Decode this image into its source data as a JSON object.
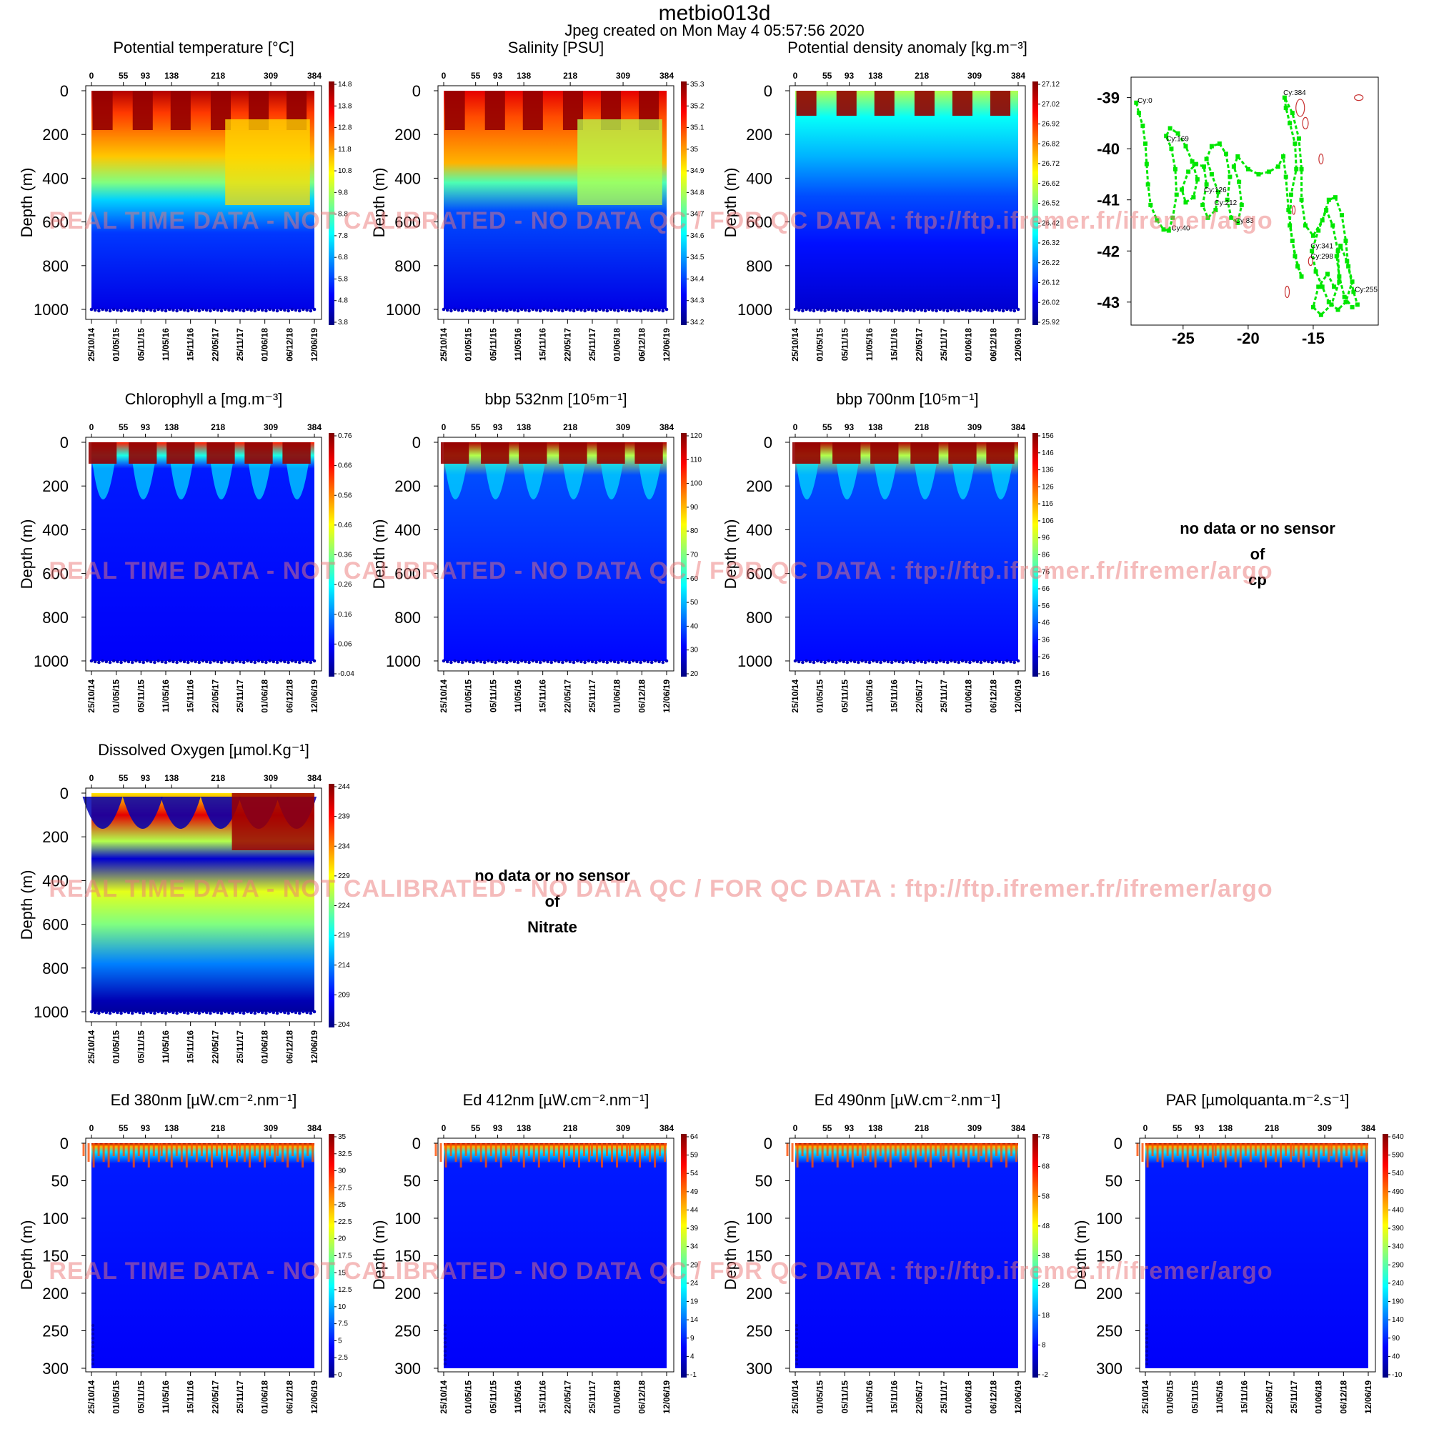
{
  "header": {
    "title": "metbio013d",
    "subtitle": "Jpeg created on  Mon May  4 05:57:56 2020"
  },
  "watermark": "REAL TIME DATA - NOT CALIBRATED - NO DATA QC   /  FOR QC DATA : ftp://ftp.ifremer.fr/ifremer/argo",
  "common": {
    "ylabel": "Depth (m)",
    "cycle_ticks": [
      "0",
      "55",
      "93",
      "138",
      "218",
      "309",
      "384"
    ],
    "date_ticks": [
      "25/10/14",
      "01/05/15",
      "05/11/15",
      "11/05/16",
      "15/11/16",
      "22/05/17",
      "25/11/17",
      "01/06/18",
      "06/12/18",
      "12/06/19"
    ],
    "depth_ticks_deep": [
      "0",
      "200",
      "400",
      "600",
      "800",
      "1000"
    ],
    "depth_ticks_shallow": [
      "0",
      "50",
      "100",
      "150",
      "200",
      "250",
      "300"
    ]
  },
  "no_data": {
    "cp": [
      "no data or no sensor",
      "of",
      "cp"
    ],
    "nitrate": [
      "no data or no sensor",
      "of",
      "Nitrate"
    ]
  },
  "colors": {
    "watermark": "#eb7878",
    "track": "#00e600",
    "track_label": "#000000",
    "contour": "#c83232"
  },
  "chart_data": [
    {
      "type": "heatmap",
      "id": "temp",
      "title": "Potential temperature [°C]",
      "ylim": [
        0,
        1000
      ],
      "colorbar_ticks": [
        "14.8",
        "13.8",
        "12.8",
        "11.8",
        "10.8",
        "9.8",
        "8.8",
        "7.8",
        "6.8",
        "5.8",
        "4.8",
        "3.8"
      ]
    },
    {
      "type": "heatmap",
      "id": "sal",
      "title": "Salinity [PSU]",
      "ylim": [
        0,
        1000
      ],
      "colorbar_ticks": [
        "35.3",
        "35.2",
        "35.1",
        "35",
        "34.9",
        "34.8",
        "34.7",
        "34.6",
        "34.5",
        "34.4",
        "34.3",
        "34.2"
      ]
    },
    {
      "type": "heatmap",
      "id": "dens",
      "title": "Potential density anomaly [kg.m⁻³]",
      "ylim": [
        0,
        1000
      ],
      "colorbar_ticks": [
        "27.12",
        "27.02",
        "26.92",
        "26.82",
        "26.72",
        "26.62",
        "26.52",
        "26.42",
        "26.32",
        "26.22",
        "26.12",
        "26.02",
        "25.92"
      ]
    },
    {
      "type": "heatmap",
      "id": "chla",
      "title": "Chlorophyll a [mg.m⁻³]",
      "ylim": [
        0,
        1000
      ],
      "colorbar_ticks": [
        "0.76",
        "0.66",
        "0.56",
        "0.46",
        "0.36",
        "0.26",
        "0.16",
        "0.06",
        "-0.04"
      ]
    },
    {
      "type": "heatmap",
      "id": "bbp532",
      "title": "bbp 532nm [10⁵m⁻¹]",
      "ylim": [
        0,
        1000
      ],
      "colorbar_ticks": [
        "120",
        "110",
        "100",
        "90",
        "80",
        "70",
        "60",
        "50",
        "40",
        "30",
        "20"
      ]
    },
    {
      "type": "heatmap",
      "id": "bbp700",
      "title": "bbp 700nm [10⁵m⁻¹]",
      "ylim": [
        0,
        1000
      ],
      "colorbar_ticks": [
        "156",
        "146",
        "136",
        "126",
        "116",
        "106",
        "96",
        "86",
        "76",
        "66",
        "56",
        "46",
        "36",
        "26",
        "16"
      ]
    },
    {
      "type": "heatmap",
      "id": "oxy",
      "title": "Dissolved Oxygen [µmol.Kg⁻¹]",
      "ylim": [
        0,
        1000
      ],
      "colorbar_ticks": [
        "244",
        "239",
        "234",
        "229",
        "224",
        "219",
        "214",
        "209",
        "204"
      ]
    },
    {
      "type": "heatmap",
      "id": "ed380",
      "title": "Ed 380nm [µW.cm⁻².nm⁻¹]",
      "ylim": [
        0,
        300
      ],
      "colorbar_ticks": [
        "35",
        "32.5",
        "30",
        "27.5",
        "25",
        "22.5",
        "20",
        "17.5",
        "15",
        "12.5",
        "10",
        "7.5",
        "5",
        "2.5",
        "0"
      ]
    },
    {
      "type": "heatmap",
      "id": "ed412",
      "title": "Ed 412nm [µW.cm⁻².nm⁻¹]",
      "ylim": [
        0,
        300
      ],
      "colorbar_ticks": [
        "64",
        "59",
        "54",
        "49",
        "44",
        "39",
        "34",
        "29",
        "24",
        "19",
        "14",
        "9",
        "4",
        "-1"
      ]
    },
    {
      "type": "heatmap",
      "id": "ed490",
      "title": "Ed 490nm [µW.cm⁻².nm⁻¹]",
      "ylim": [
        0,
        300
      ],
      "colorbar_ticks": [
        "78",
        "68",
        "58",
        "48",
        "38",
        "28",
        "18",
        "8",
        "-2"
      ]
    },
    {
      "type": "heatmap",
      "id": "par",
      "title": "PAR [µmolquanta.m⁻².s⁻¹]",
      "ylim": [
        0,
        300
      ],
      "colorbar_ticks": [
        "640",
        "590",
        "540",
        "490",
        "440",
        "390",
        "340",
        "290",
        "240",
        "190",
        "140",
        "90",
        "40",
        "-10"
      ]
    },
    {
      "type": "scatter",
      "id": "trajectory",
      "x_ticks": [
        "-25",
        "-20",
        "-15"
      ],
      "y_ticks": [
        "-39",
        "-40",
        "-41",
        "-42",
        "-43"
      ],
      "xlim": [
        -29,
        -10
      ],
      "ylim": [
        -43.45,
        -38.6
      ],
      "labels": [
        {
          "text": "Cy:0",
          "lon": -28.5,
          "lat": -39.1
        },
        {
          "text": "Cy:384",
          "lon": -17.3,
          "lat": -38.95
        },
        {
          "text": "Cy:169",
          "lon": -26.3,
          "lat": -39.85
        },
        {
          "text": "Cy:126",
          "lon": -23.4,
          "lat": -40.85
        },
        {
          "text": "Cy:212",
          "lon": -22.6,
          "lat": -41.1
        },
        {
          "text": "Cy:83",
          "lon": -21.0,
          "lat": -41.45
        },
        {
          "text": "Cy:40",
          "lon": -25.9,
          "lat": -41.6
        },
        {
          "text": "Cy:341",
          "lon": -15.2,
          "lat": -41.95
        },
        {
          "text": "Cy:298",
          "lon": -15.2,
          "lat": -42.15
        },
        {
          "text": "Cy:255",
          "lon": -11.8,
          "lat": -42.8
        }
      ],
      "track": [
        [
          -28.6,
          -39.1
        ],
        [
          -28.4,
          -39.3
        ],
        [
          -28.1,
          -39.55
        ],
        [
          -27.9,
          -39.9
        ],
        [
          -27.8,
          -40.3
        ],
        [
          -27.7,
          -40.7
        ],
        [
          -27.5,
          -41.1
        ],
        [
          -27.0,
          -41.4
        ],
        [
          -26.5,
          -41.58
        ],
        [
          -26.1,
          -41.6
        ],
        [
          -25.8,
          -41.35
        ],
        [
          -25.5,
          -40.9
        ],
        [
          -25.6,
          -40.4
        ],
        [
          -25.9,
          -40.0
        ],
        [
          -26.3,
          -39.75
        ],
        [
          -26.0,
          -39.6
        ],
        [
          -25.4,
          -39.7
        ],
        [
          -24.8,
          -39.95
        ],
        [
          -24.3,
          -40.25
        ],
        [
          -23.9,
          -40.6
        ],
        [
          -24.2,
          -40.95
        ],
        [
          -24.8,
          -41.05
        ],
        [
          -25.1,
          -40.8
        ],
        [
          -24.6,
          -40.45
        ],
        [
          -24.0,
          -40.3
        ],
        [
          -23.4,
          -40.35
        ],
        [
          -23.2,
          -40.7
        ],
        [
          -23.5,
          -41.1
        ],
        [
          -23.1,
          -41.35
        ],
        [
          -22.5,
          -41.2
        ],
        [
          -22.3,
          -40.85
        ],
        [
          -22.8,
          -40.5
        ],
        [
          -23.2,
          -40.2
        ],
        [
          -22.8,
          -39.95
        ],
        [
          -22.2,
          -39.9
        ],
        [
          -21.7,
          -40.1
        ],
        [
          -21.4,
          -40.55
        ],
        [
          -21.6,
          -41.0
        ],
        [
          -21.3,
          -41.35
        ],
        [
          -20.8,
          -41.45
        ],
        [
          -20.5,
          -41.1
        ],
        [
          -20.7,
          -40.65
        ],
        [
          -21.1,
          -40.35
        ],
        [
          -20.8,
          -40.15
        ],
        [
          -20.0,
          -40.4
        ],
        [
          -19.2,
          -40.5
        ],
        [
          -18.4,
          -40.45
        ],
        [
          -17.7,
          -40.35
        ],
        [
          -17.3,
          -40.15
        ],
        [
          -17.1,
          -40.55
        ],
        [
          -16.9,
          -41.2
        ],
        [
          -16.6,
          -41.8
        ],
        [
          -16.2,
          -42.3
        ],
        [
          -15.9,
          -42.5
        ],
        [
          -16.4,
          -42.1
        ],
        [
          -16.8,
          -41.5
        ],
        [
          -16.7,
          -40.9
        ],
        [
          -16.3,
          -40.4
        ],
        [
          -16.4,
          -39.9
        ],
        [
          -16.8,
          -39.5
        ],
        [
          -17.1,
          -39.2
        ],
        [
          -17.2,
          -39.0
        ],
        [
          -16.6,
          -39.3
        ],
        [
          -16.1,
          -39.8
        ],
        [
          -15.9,
          -40.4
        ],
        [
          -15.9,
          -41.0
        ],
        [
          -15.6,
          -41.5
        ],
        [
          -15.0,
          -41.7
        ],
        [
          -14.3,
          -41.4
        ],
        [
          -13.8,
          -41.0
        ],
        [
          -13.3,
          -40.95
        ],
        [
          -12.8,
          -41.3
        ],
        [
          -12.5,
          -41.8
        ],
        [
          -12.3,
          -42.3
        ],
        [
          -11.9,
          -42.8
        ],
        [
          -11.6,
          -43.05
        ],
        [
          -12.0,
          -43.1
        ],
        [
          -12.6,
          -42.9
        ],
        [
          -13.0,
          -42.5
        ],
        [
          -13.2,
          -42.1
        ],
        [
          -12.9,
          -41.9
        ],
        [
          -12.4,
          -42.2
        ],
        [
          -12.0,
          -42.6
        ],
        [
          -12.5,
          -43.0
        ],
        [
          -13.1,
          -43.15
        ],
        [
          -13.8,
          -43.0
        ],
        [
          -14.3,
          -42.7
        ],
        [
          -14.8,
          -42.4
        ],
        [
          -15.1,
          -42.0
        ],
        [
          -14.6,
          -41.6
        ],
        [
          -14.0,
          -41.2
        ],
        [
          -13.5,
          -41.5
        ],
        [
          -13.1,
          -42.0
        ],
        [
          -13.0,
          -42.6
        ],
        [
          -13.6,
          -43.05
        ],
        [
          -14.4,
          -43.25
        ],
        [
          -15.0,
          -43.1
        ],
        [
          -14.6,
          -42.7
        ],
        [
          -13.9,
          -42.45
        ],
        [
          -13.4,
          -42.7
        ]
      ]
    }
  ]
}
